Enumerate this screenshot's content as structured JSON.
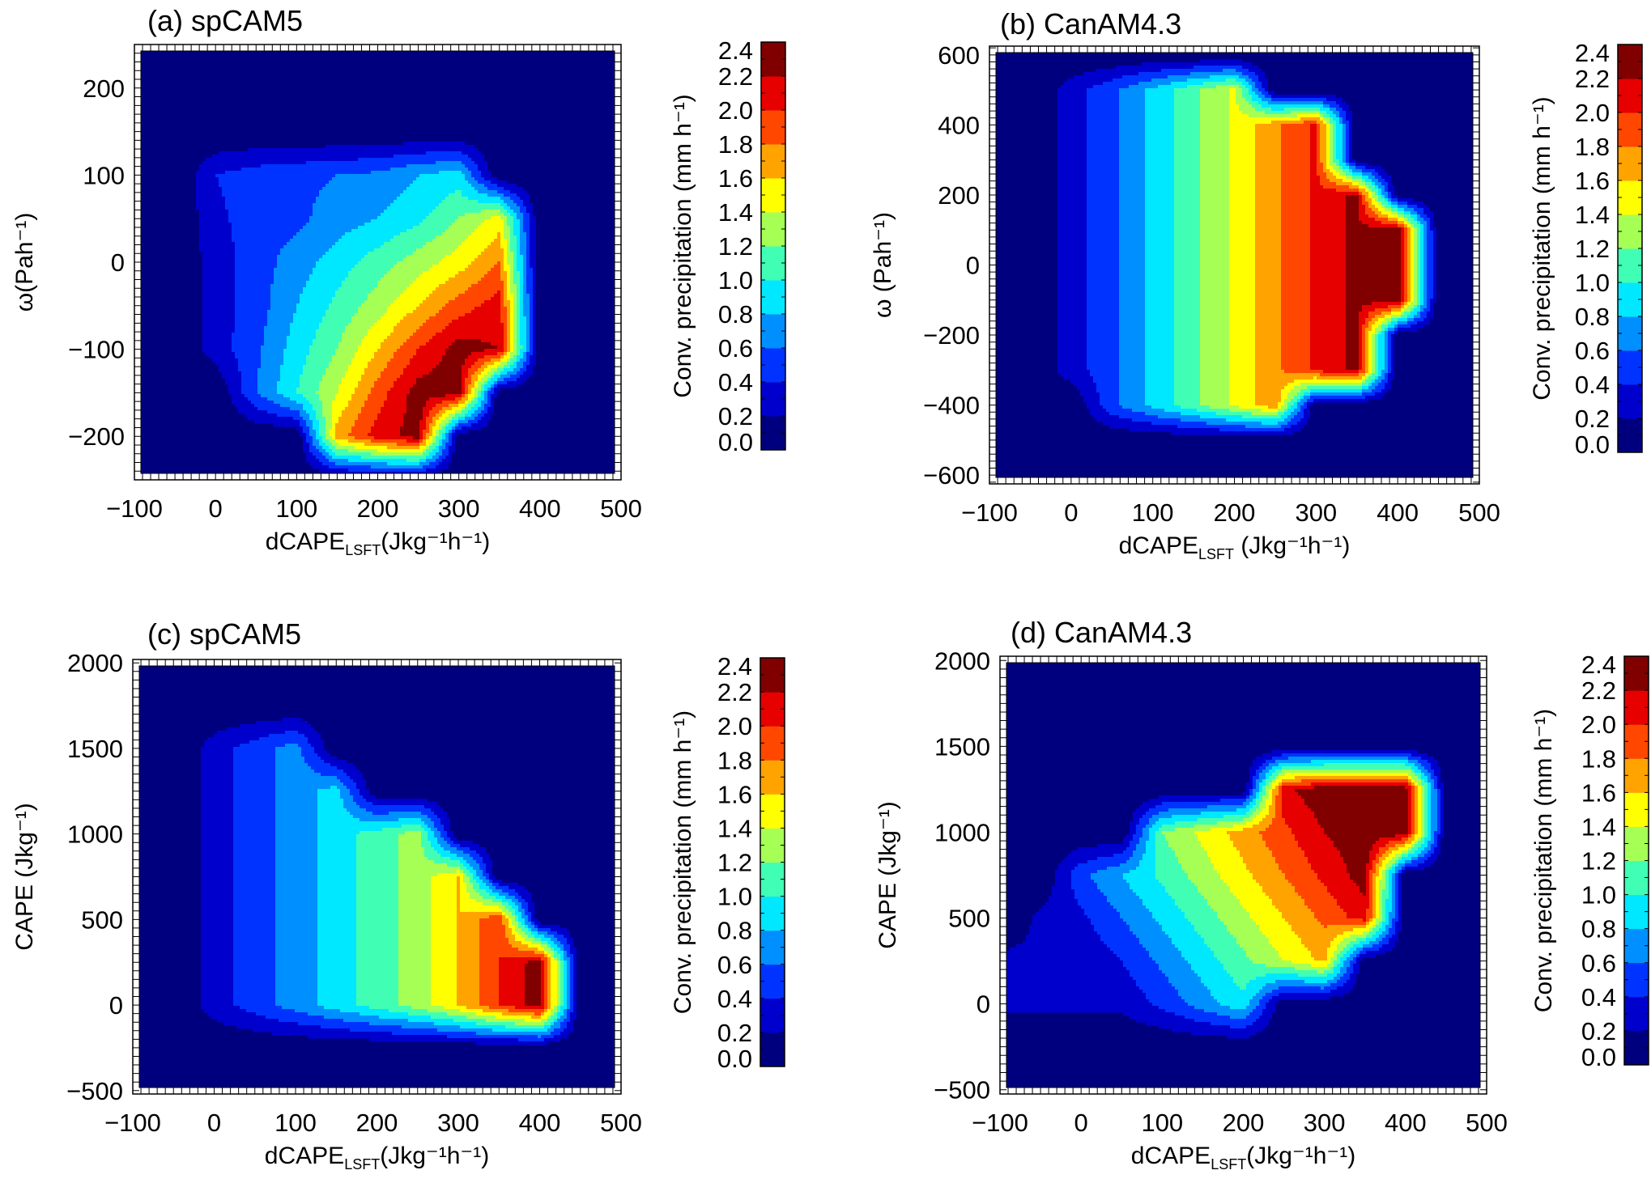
{
  "chart_data": {
    "type": "heatmap",
    "colorbar": {
      "label": "Conv. precipitation  (mm h⁻¹)",
      "levels": [
        0.0,
        0.2,
        0.4,
        0.6,
        0.8,
        1.0,
        1.2,
        1.4,
        1.6,
        1.8,
        2.0,
        2.2,
        2.4
      ],
      "level_labels": [
        "0.0",
        "0.2",
        "0.4",
        "0.6",
        "0.8",
        "1.0",
        "1.2",
        "1.4",
        "1.6",
        "1.8",
        "2.0",
        "2.2",
        "2.4"
      ],
      "colors": [
        "#00007f",
        "#0000cd",
        "#0033ff",
        "#008fff",
        "#00e8ff",
        "#40ffb4",
        "#a6ff55",
        "#ffff00",
        "#ffa300",
        "#ff4700",
        "#e60000",
        "#800000"
      ]
    },
    "panels": [
      {
        "title": "(a) spCAM5",
        "xlabel": {
          "main": "dCAPE",
          "sub": "LSFT",
          "unit": "(Jkg⁻¹h⁻¹)"
        },
        "ylabel": "ω(Pah⁻¹)",
        "xlim": [
          -100,
          500
        ],
        "ylim": [
          -250,
          250
        ],
        "xticks": [
          -100,
          0,
          100,
          200,
          300,
          400,
          500
        ],
        "xtick_labels": [
          "−100",
          "0",
          "100",
          "200",
          "300",
          "400",
          "500"
        ],
        "yticks": [
          -200,
          -100,
          0,
          100,
          200
        ],
        "ytick_labels": [
          "−200",
          "−100",
          "0",
          "100",
          "200"
        ],
        "grid": {
          "x": [
            -100,
            -50,
            0,
            50,
            100,
            150,
            200,
            250,
            300,
            350,
            400,
            450,
            500
          ],
          "y": [
            250,
            200,
            150,
            100,
            50,
            0,
            -50,
            -100,
            -150,
            -200,
            -250
          ],
          "z": [
            [
              0,
              0,
              0,
              0,
              0,
              0,
              0,
              0,
              0,
              0,
              0,
              0,
              0
            ],
            [
              0,
              0,
              0,
              0,
              0,
              0,
              0,
              0,
              0,
              0,
              0,
              0,
              0
            ],
            [
              0,
              0,
              0,
              0,
              0,
              0,
              0,
              0,
              0,
              0,
              0,
              0,
              0
            ],
            [
              0,
              0,
              0.4,
              0.5,
              0.55,
              0.6,
              0.65,
              0.8,
              0.9,
              0,
              0,
              0,
              0
            ],
            [
              0,
              0,
              0.35,
              0.5,
              0.55,
              0.7,
              0.8,
              0.95,
              1.2,
              1.5,
              0,
              0,
              0
            ],
            [
              0,
              0,
              0.3,
              0.5,
              0.7,
              0.9,
              1.1,
              1.3,
              1.5,
              1.8,
              0,
              0,
              0
            ],
            [
              0,
              0,
              0.3,
              0.5,
              0.8,
              1.05,
              1.3,
              1.6,
              1.9,
              2.1,
              0,
              0,
              0
            ],
            [
              0,
              0,
              0.3,
              0.55,
              0.9,
              1.2,
              1.6,
              2.0,
              2.3,
              2.2,
              0,
              0,
              0
            ],
            [
              0,
              0,
              0,
              0.6,
              1.0,
              1.4,
              1.9,
              2.3,
              2.3,
              0,
              0,
              0,
              0
            ],
            [
              0,
              0,
              0,
              0,
              0,
              1.7,
              2.1,
              2.3,
              0,
              0,
              0,
              0,
              0
            ],
            [
              0,
              0,
              0,
              0,
              0,
              0,
              0,
              0,
              0,
              0,
              0,
              0,
              0
            ]
          ]
        }
      },
      {
        "title": "(b) CanAM4.3",
        "xlabel": {
          "main": "dCAPE",
          "sub": "LSFT",
          "unit": " (Jkg⁻¹h⁻¹)"
        },
        "ylabel": "ω (Pah⁻¹)",
        "xlim": [
          -100,
          500
        ],
        "ylim": [
          -625,
          625
        ],
        "xticks": [
          -100,
          0,
          100,
          200,
          300,
          400,
          500
        ],
        "xtick_labels": [
          "−100",
          "0",
          "100",
          "200",
          "300",
          "400",
          "500"
        ],
        "yticks": [
          -600,
          -400,
          -200,
          0,
          200,
          400,
          600
        ],
        "ytick_labels": [
          "−600",
          "−400",
          "−200",
          "0",
          "200",
          "400",
          "600"
        ],
        "grid": {
          "x": [
            -100,
            -50,
            0,
            50,
            100,
            150,
            200,
            250,
            300,
            350,
            400,
            450,
            500
          ],
          "y": [
            600,
            500,
            400,
            300,
            200,
            100,
            0,
            -100,
            -200,
            -300,
            -400,
            -500,
            -600
          ],
          "z": [
            [
              0,
              0,
              0,
              0,
              0,
              0,
              0,
              0,
              0,
              0,
              0,
              0,
              0
            ],
            [
              0,
              0,
              0.3,
              0.55,
              0.85,
              1.15,
              1.45,
              0,
              0,
              0,
              0,
              0,
              0
            ],
            [
              0,
              0,
              0.3,
              0.55,
              0.85,
              1.15,
              1.45,
              1.75,
              2.05,
              0,
              0,
              0,
              0
            ],
            [
              0,
              0,
              0.3,
              0.55,
              0.85,
              1.15,
              1.45,
              1.75,
              2.05,
              0,
              0,
              0,
              0
            ],
            [
              0,
              0,
              0.3,
              0.55,
              0.85,
              1.15,
              1.45,
              1.75,
              2.05,
              2.25,
              0,
              0,
              0
            ],
            [
              0,
              0,
              0.3,
              0.55,
              0.85,
              1.15,
              1.45,
              1.75,
              2.05,
              2.25,
              2.35,
              0,
              0
            ],
            [
              0,
              0,
              0.3,
              0.55,
              0.85,
              1.15,
              1.45,
              1.75,
              2.05,
              2.25,
              2.35,
              0,
              0
            ],
            [
              0,
              0,
              0.3,
              0.55,
              0.85,
              1.15,
              1.45,
              1.75,
              2.05,
              2.25,
              2.35,
              0,
              0
            ],
            [
              0,
              0,
              0.3,
              0.55,
              0.85,
              1.15,
              1.45,
              1.75,
              2.05,
              2.25,
              0,
              0,
              0
            ],
            [
              0,
              0,
              0.3,
              0.55,
              0.85,
              1.15,
              1.45,
              1.75,
              2.05,
              2.25,
              0,
              0,
              0
            ],
            [
              0,
              0,
              0,
              0.55,
              0.85,
              1.15,
              1.45,
              1.75,
              0,
              0,
              0,
              0,
              0
            ],
            [
              0,
              0,
              0,
              0,
              0,
              0,
              0,
              0,
              0,
              0,
              0,
              0,
              0
            ],
            [
              0,
              0,
              0,
              0,
              0,
              0,
              0,
              0,
              0,
              0,
              0,
              0,
              0
            ]
          ]
        }
      },
      {
        "title": "(c) spCAM5",
        "xlabel": {
          "main": "dCAPE",
          "sub": "LSFT",
          "unit": "(Jkg⁻¹h⁻¹)"
        },
        "ylabel": "CAPE (Jkg⁻¹)",
        "xlim": [
          -100,
          500
        ],
        "ylim": [
          -520,
          2020
        ],
        "xticks": [
          -100,
          0,
          100,
          200,
          300,
          400,
          500
        ],
        "xtick_labels": [
          "−100",
          "0",
          "100",
          "200",
          "300",
          "400",
          "500"
        ],
        "yticks": [
          -500,
          0,
          500,
          1000,
          1500,
          2000
        ],
        "ytick_labels": [
          "−500",
          "0",
          "500",
          "1000",
          "1500",
          "2000"
        ],
        "grid": {
          "x": [
            -100,
            -50,
            0,
            50,
            100,
            150,
            200,
            250,
            300,
            350,
            400,
            450,
            500
          ],
          "y": [
            2000,
            1750,
            1500,
            1250,
            1000,
            750,
            500,
            250,
            0,
            -250,
            -500
          ],
          "z": [
            [
              0,
              0,
              0,
              0,
              0,
              0,
              0,
              0,
              0,
              0,
              0,
              0,
              0
            ],
            [
              0,
              0,
              0,
              0,
              0,
              0,
              0,
              0,
              0,
              0,
              0,
              0,
              0
            ],
            [
              0,
              0,
              0.3,
              0.5,
              0.7,
              0,
              0,
              0,
              0,
              0,
              0,
              0,
              0
            ],
            [
              0,
              0,
              0.3,
              0.5,
              0.7,
              0.9,
              0,
              0,
              0,
              0,
              0,
              0,
              0
            ],
            [
              0,
              0,
              0.3,
              0.5,
              0.7,
              0.9,
              1.1,
              1.3,
              0,
              0,
              0,
              0,
              0
            ],
            [
              0,
              0,
              0.3,
              0.5,
              0.7,
              0.9,
              1.1,
              1.3,
              1.6,
              0,
              0,
              0,
              0
            ],
            [
              0,
              0,
              0.3,
              0.5,
              0.7,
              0.9,
              1.1,
              1.3,
              1.6,
              2.0,
              0,
              0,
              0
            ],
            [
              0,
              0,
              0.3,
              0.5,
              0.7,
              0.9,
              1.1,
              1.3,
              1.6,
              2.0,
              2.3,
              0,
              0
            ],
            [
              0,
              0,
              0.3,
              0.5,
              0.7,
              0.9,
              1.1,
              1.3,
              1.6,
              2.0,
              2.3,
              0,
              0
            ],
            [
              0,
              0,
              0,
              0,
              0,
              0,
              0,
              0,
              0,
              0,
              0,
              0,
              0
            ],
            [
              0,
              0,
              0,
              0,
              0,
              0,
              0,
              0,
              0,
              0,
              0,
              0,
              0
            ]
          ]
        }
      },
      {
        "title": "(d) CanAM4.3",
        "xlabel": {
          "main": "dCAPE",
          "sub": "LSFT",
          "unit": "(Jkg⁻¹h⁻¹)"
        },
        "ylabel": "CAPE (Jkg⁻¹)",
        "xlim": [
          -100,
          500
        ],
        "ylim": [
          -525,
          2025
        ],
        "xticks": [
          -100,
          0,
          100,
          200,
          300,
          400,
          500
        ],
        "xtick_labels": [
          "−100",
          "0",
          "100",
          "200",
          "300",
          "400",
          "500"
        ],
        "yticks": [
          -500,
          0,
          500,
          1000,
          1500,
          2000
        ],
        "ytick_labels": [
          "−500",
          "0",
          "500",
          "1000",
          "1500",
          "2000"
        ],
        "grid": {
          "x": [
            -100,
            -50,
            0,
            50,
            100,
            150,
            200,
            250,
            300,
            350,
            400,
            450,
            500
          ],
          "y": [
            2000,
            1750,
            1500,
            1250,
            1000,
            750,
            500,
            250,
            0,
            -250,
            -500
          ],
          "z": [
            [
              0,
              0,
              0,
              0,
              0,
              0,
              0,
              0,
              0,
              0,
              0,
              0,
              0
            ],
            [
              0,
              0,
              0,
              0,
              0,
              0,
              0,
              0,
              0,
              0,
              0,
              0,
              0
            ],
            [
              0,
              0,
              0,
              0,
              0,
              0,
              0,
              0,
              0,
              0,
              0,
              0,
              0
            ],
            [
              0,
              0,
              0,
              0,
              0,
              0,
              0,
              2.15,
              2.35,
              2.35,
              2.35,
              0,
              0
            ],
            [
              0,
              0,
              0,
              0,
              1.2,
              1.45,
              1.7,
              1.95,
              2.2,
              2.35,
              2.35,
              0,
              0
            ],
            [
              0,
              0,
              0.55,
              0.8,
              1.05,
              1.3,
              1.55,
              1.8,
              2.05,
              2.3,
              0,
              0,
              0
            ],
            [
              0,
              0.25,
              0.35,
              0.6,
              0.85,
              1.1,
              1.35,
              1.6,
              1.85,
              2.1,
              0,
              0,
              0
            ],
            [
              0.25,
              0.25,
              0.25,
              0.4,
              0.65,
              0.9,
              1.15,
              1.4,
              1.65,
              0,
              0,
              0,
              0
            ],
            [
              0.25,
              0.25,
              0.25,
              0.25,
              0.45,
              0.7,
              0.95,
              0,
              0,
              0,
              0,
              0,
              0
            ],
            [
              0,
              0,
              0,
              0,
              0,
              0,
              0,
              0,
              0,
              0,
              0,
              0,
              0
            ],
            [
              0,
              0,
              0,
              0,
              0,
              0,
              0,
              0,
              0,
              0,
              0,
              0,
              0
            ]
          ]
        }
      }
    ]
  }
}
